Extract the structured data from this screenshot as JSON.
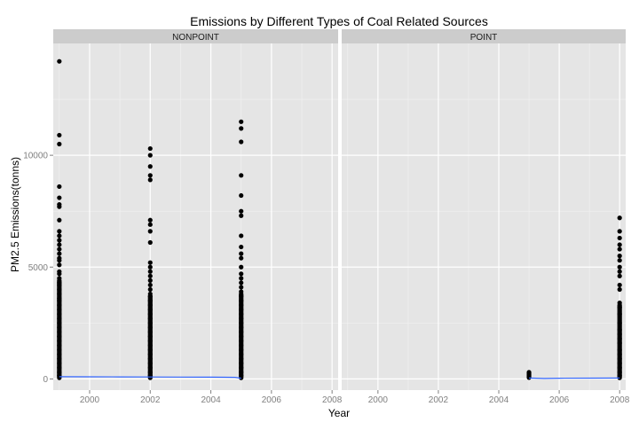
{
  "chart_data": {
    "type": "scatter",
    "title": "Emissions by Different Types of Coal Related Sources",
    "xlabel": "Year",
    "ylabel": "PM2.5 Emissions(tonns)",
    "xlim": [
      1998.8,
      2008.2
    ],
    "ylim": [
      -500,
      15000
    ],
    "x_ticks": [
      2000,
      2002,
      2004,
      2006,
      2008
    ],
    "y_ticks": [
      0,
      5000,
      10000
    ],
    "grid": true,
    "colors": {
      "panel_bg": "#e5e5e5",
      "strip_bg": "#cccccc",
      "grid_major": "#ffffff",
      "grid_minor": "#f2f2f2",
      "point": "#000000",
      "smooth_line": "#3366ff",
      "tick_text": "#7f7f7f"
    },
    "facets": [
      {
        "label": "NONPOINT",
        "clusters": [
          {
            "x": 1999,
            "values": [
              14200,
              10900,
              10500,
              8600,
              8100,
              7800,
              7700,
              7100,
              6600,
              6400,
              6200,
              6000,
              5800,
              5600,
              5400,
              5300,
              5100,
              4800,
              4700,
              4500,
              4300,
              4200,
              4000,
              3800,
              3600,
              3500,
              3300,
              3100,
              2900,
              2700,
              2500,
              2300,
              2100,
              1900,
              1700,
              1500,
              1300,
              1100,
              900,
              700,
              500,
              300,
              150,
              50
            ]
          },
          {
            "x": 2002,
            "values": [
              10300,
              10000,
              9500,
              9100,
              8900,
              7100,
              6900,
              6600,
              6100,
              5200,
              5000,
              4800,
              4600,
              4400,
              4200,
              4000,
              3800,
              3700,
              3500,
              3300,
              3100,
              2900,
              2700,
              2500,
              2300,
              2100,
              1900,
              1700,
              1500,
              1300,
              1100,
              900,
              700,
              500,
              300,
              150,
              50
            ]
          },
          {
            "x": 2005,
            "values": [
              11500,
              11200,
              10600,
              9100,
              8200,
              7500,
              7300,
              6400,
              5900,
              5600,
              5400,
              5000,
              4700,
              4500,
              4300,
              4100,
              3900,
              3700,
              3500,
              3300,
              3100,
              2900,
              2700,
              2500,
              2300,
              2100,
              1900,
              1700,
              1500,
              1300,
              1100,
              900,
              700,
              500,
              300,
              150,
              50
            ]
          }
        ],
        "smooth": [
          [
            1999,
            100
          ],
          [
            2000,
            95
          ],
          [
            2001,
            90
          ],
          [
            2002,
            85
          ],
          [
            2003,
            82
          ],
          [
            2004,
            80
          ],
          [
            2004.8,
            70
          ],
          [
            2005,
            30
          ]
        ]
      },
      {
        "label": "POINT",
        "clusters": [
          {
            "x": 2005,
            "values": [
              300,
              260,
              220,
              180,
              140,
              100,
              60
            ]
          },
          {
            "x": 2008,
            "values": [
              7200,
              6600,
              6300,
              6000,
              5800,
              5500,
              5300,
              5000,
              4800,
              4600,
              4200,
              4000,
              3400,
              3200,
              2900,
              2500,
              2200,
              2000,
              1800,
              1600,
              1300,
              1100,
              900,
              700,
              500,
              300,
              150,
              50
            ]
          }
        ],
        "smooth": [
          [
            2005,
            40
          ],
          [
            2005.5,
            20
          ],
          [
            2006,
            30
          ],
          [
            2007,
            35
          ],
          [
            2008,
            40
          ]
        ]
      }
    ]
  }
}
